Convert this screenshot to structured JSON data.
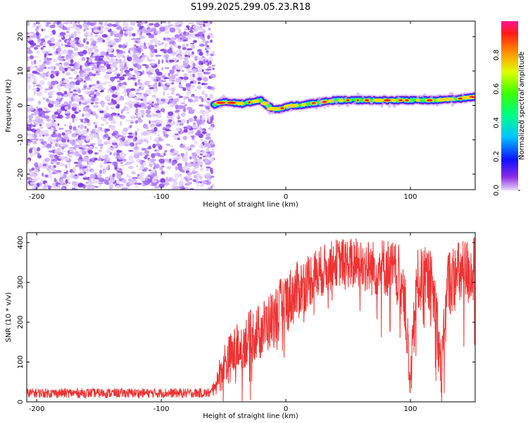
{
  "title": "S199.2025.299.05.23.R18",
  "chart_data": [
    {
      "type": "heatmap",
      "xlabel": "Height of straight line (km)",
      "ylabel": "Frequency (Hz)",
      "xlim": [
        -208,
        152
      ],
      "ylim": [
        -24.5,
        24.5
      ],
      "xticks": [
        -200,
        -100,
        0,
        100
      ],
      "yticks": [
        -20,
        -10,
        0,
        10,
        20
      ],
      "noise_region_x": [
        -208,
        -58
      ],
      "signal_region_x": [
        -58,
        152
      ],
      "signal_line": [
        [
          -58,
          0
        ],
        [
          -50,
          1
        ],
        [
          -35,
          0.5
        ],
        [
          -20,
          1.5
        ],
        [
          -15,
          0
        ],
        [
          -10,
          -1
        ],
        [
          -5,
          -1
        ],
        [
          0,
          -0.5
        ],
        [
          5,
          0
        ],
        [
          10,
          0
        ],
        [
          20,
          0.5
        ],
        [
          40,
          1.5
        ],
        [
          60,
          1.5
        ],
        [
          80,
          1.5
        ],
        [
          100,
          1.5
        ],
        [
          120,
          1.5
        ],
        [
          140,
          2
        ],
        [
          152,
          2.5
        ]
      ],
      "colorbar": {
        "label": "Normalized spectral amplitude",
        "ticks": [
          0.0,
          0.2,
          0.4,
          0.6,
          0.8
        ],
        "range": [
          0,
          1
        ]
      }
    },
    {
      "type": "line",
      "xlabel": "Height of straight line (km)",
      "ylabel": "SNR (10 * v/v)",
      "xlim": [
        -208,
        152
      ],
      "ylim": [
        0,
        425
      ],
      "xticks": [
        -200,
        -100,
        0,
        100
      ],
      "yticks": [
        0,
        100,
        200,
        300,
        400
      ],
      "color": "#ee3333",
      "series": [
        {
          "name": "SNR",
          "envelope": [
            [
              -208,
              22
            ],
            [
              -60,
              22
            ],
            [
              -50,
              90
            ],
            [
              -40,
              130
            ],
            [
              -30,
              160
            ],
            [
              -20,
              180
            ],
            [
              -10,
              210
            ],
            [
              0,
              250
            ],
            [
              10,
              280
            ],
            [
              20,
              310
            ],
            [
              30,
              330
            ],
            [
              40,
              350
            ],
            [
              50,
              350
            ],
            [
              60,
              345
            ],
            [
              70,
              335
            ],
            [
              80,
              340
            ],
            [
              90,
              320
            ],
            [
              95,
              280
            ],
            [
              100,
              30
            ],
            [
              105,
              300
            ],
            [
              115,
              310
            ],
            [
              120,
              250
            ],
            [
              125,
              60
            ],
            [
              130,
              300
            ],
            [
              140,
              320
            ],
            [
              152,
              330
            ]
          ],
          "noise_amplitude": [
            [
              -208,
              12
            ],
            [
              -60,
              12
            ],
            [
              -50,
              60
            ],
            [
              0,
              80
            ],
            [
              40,
              60
            ],
            [
              90,
              80
            ],
            [
              152,
              90
            ]
          ]
        }
      ]
    }
  ]
}
